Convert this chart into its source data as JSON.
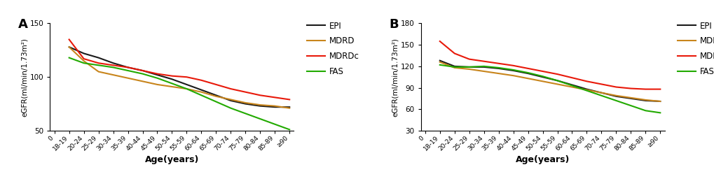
{
  "age_labels": [
    "0",
    "18-19",
    "20-24",
    "25-29",
    "30-34",
    "35-39",
    "40-44",
    "45-49",
    "50-54",
    "55-59",
    "60-64",
    "65-69",
    "70-74",
    "75-79",
    "80-84",
    "85-89",
    "≥90"
  ],
  "panel_A": {
    "title": "A",
    "ylabel": "eGFR(ml/min/1.73m²)",
    "xlabel": "Age(years)",
    "ylim": [
      50,
      150
    ],
    "yticks": [
      50,
      100,
      150
    ],
    "EPI": [
      null,
      128,
      122,
      118,
      113,
      109,
      106,
      102,
      98,
      93,
      88,
      83,
      78,
      75,
      73,
      72,
      72
    ],
    "MDRD": [
      null,
      128,
      115,
      105,
      102,
      99,
      96,
      93,
      91,
      89,
      86,
      82,
      79,
      76,
      74,
      73,
      71
    ],
    "MDRDc": [
      null,
      135,
      117,
      113,
      111,
      109,
      106,
      103,
      101,
      100,
      97,
      93,
      89,
      86,
      83,
      81,
      79
    ],
    "FAS": [
      null,
      118,
      113,
      111,
      109,
      106,
      103,
      99,
      94,
      89,
      83,
      77,
      71,
      66,
      61,
      56,
      51
    ]
  },
  "panel_B": {
    "title": "B",
    "ylabel": "eGFR(ml/min/1.73m²)",
    "xlabel": "Age(years)",
    "ylim": [
      30,
      180
    ],
    "yticks": [
      30,
      60,
      90,
      120,
      150,
      180
    ],
    "EPI": [
      null,
      128,
      120,
      119,
      119,
      117,
      114,
      110,
      105,
      100,
      94,
      88,
      83,
      78,
      75,
      72,
      71
    ],
    "MDRD": [
      null,
      126,
      118,
      116,
      113,
      110,
      107,
      103,
      99,
      95,
      91,
      87,
      83,
      79,
      76,
      73,
      71
    ],
    "MDRDc": [
      null,
      155,
      138,
      130,
      127,
      124,
      121,
      117,
      113,
      109,
      104,
      99,
      95,
      91,
      89,
      88,
      88
    ],
    "FAS": [
      null,
      122,
      119,
      119,
      120,
      118,
      115,
      111,
      106,
      100,
      93,
      86,
      79,
      72,
      65,
      58,
      55
    ]
  },
  "colors": {
    "EPI": "#1a1a1a",
    "MDRD": "#c8851c",
    "MDRDc": "#e8190a",
    "FAS": "#22aa00"
  },
  "line_width": 1.5
}
